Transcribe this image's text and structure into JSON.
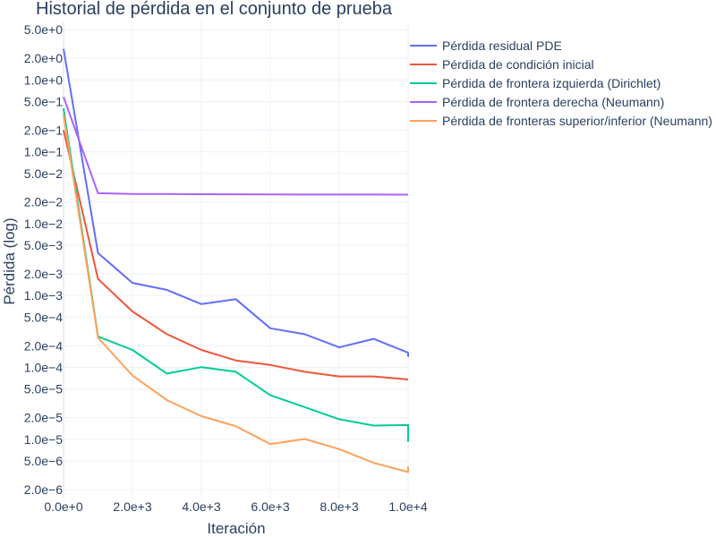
{
  "chart_data": {
    "type": "line",
    "title": "Historial de pérdida en el conjunto de prueba",
    "xlabel": "Iteración",
    "ylabel": "Pérdida (log)",
    "yscale": "log",
    "xlim": [
      0,
      10000
    ],
    "ylim": [
      1.5e-06,
      6.5
    ],
    "x_ticks": [
      {
        "value": 0,
        "label": "0.0e+0"
      },
      {
        "value": 2000,
        "label": "2.0e+3"
      },
      {
        "value": 4000,
        "label": "4.0e+3"
      },
      {
        "value": 6000,
        "label": "6.0e+3"
      },
      {
        "value": 8000,
        "label": "8.0e+3"
      },
      {
        "value": 10000,
        "label": "1.0e+4"
      }
    ],
    "y_ticks": [
      {
        "value": 5,
        "label": "5.0e+0"
      },
      {
        "value": 2,
        "label": "2.0e+0"
      },
      {
        "value": 1,
        "label": "1.0e+0"
      },
      {
        "value": 0.5,
        "label": "5.0e−1"
      },
      {
        "value": 0.2,
        "label": "2.0e−1"
      },
      {
        "value": 0.1,
        "label": "1.0e−1"
      },
      {
        "value": 0.05,
        "label": "5.0e−2"
      },
      {
        "value": 0.02,
        "label": "2.0e−2"
      },
      {
        "value": 0.01,
        "label": "1.0e−2"
      },
      {
        "value": 0.005,
        "label": "5.0e−3"
      },
      {
        "value": 0.002,
        "label": "2.0e−3"
      },
      {
        "value": 0.001,
        "label": "1.0e−3"
      },
      {
        "value": 0.0005,
        "label": "5.0e−4"
      },
      {
        "value": 0.0002,
        "label": "2.0e−4"
      },
      {
        "value": 0.0001,
        "label": "1.0e−4"
      },
      {
        "value": 5e-05,
        "label": "5.0e−5"
      },
      {
        "value": 2e-05,
        "label": "2.0e−5"
      },
      {
        "value": 1e-05,
        "label": "1.0e−5"
      },
      {
        "value": 5e-06,
        "label": "5.0e−6"
      },
      {
        "value": 2e-06,
        "label": "2.0e−6"
      }
    ],
    "grid": true,
    "legend_position": "top-right",
    "series": [
      {
        "name": "Pérdida residual PDE",
        "color": "#636efa",
        "x": [
          0,
          1000,
          2000,
          3000,
          4000,
          5000,
          6000,
          7000,
          8000,
          9000,
          10000,
          10050
        ],
        "y": [
          2.7,
          0.0039,
          0.0015,
          0.0012,
          0.00076,
          0.00089,
          0.00035,
          0.00029,
          0.00019,
          0.00025,
          0.00016,
          0.00014
        ]
      },
      {
        "name": "Pérdida de condición inicial",
        "color": "#ef553b",
        "x": [
          0,
          1000,
          2000,
          3000,
          4000,
          5000,
          6000,
          7000,
          8000,
          9000,
          10000,
          10050
        ],
        "y": [
          0.2,
          0.0017,
          0.0006,
          0.00029,
          0.000175,
          0.000125,
          0.000108,
          8.7e-05,
          7.5e-05,
          7.5e-05,
          6.8e-05,
          6.8e-05
        ]
      },
      {
        "name": "Pérdida de frontera izquierda (Dirichlet)",
        "color": "#00cc96",
        "x": [
          0,
          1000,
          2000,
          3000,
          4000,
          5000,
          6000,
          7000,
          8000,
          9000,
          10000,
          10050
        ],
        "y": [
          0.4,
          0.00027,
          0.000175,
          8.2e-05,
          0.000101,
          8.7e-05,
          4.1e-05,
          2.8e-05,
          1.9e-05,
          1.55e-05,
          1.58e-05,
          9.2e-06
        ]
      },
      {
        "name": "Pérdida de frontera derecha (Neumann)",
        "color": "#ab63fa",
        "x": [
          0,
          1000,
          2000,
          3000,
          4000,
          5000,
          6000,
          7000,
          8000,
          9000,
          10000,
          10050
        ],
        "y": [
          0.58,
          0.0265,
          0.0259,
          0.0258,
          0.0257,
          0.0256,
          0.0255,
          0.0254,
          0.0254,
          0.0254,
          0.0253,
          0.0253
        ]
      },
      {
        "name": "Pérdida de fronteras superior/inferior (Neumann)",
        "color": "#ffa15a",
        "x": [
          0,
          1000,
          2000,
          3000,
          4000,
          5000,
          6000,
          7000,
          8000,
          9000,
          10000,
          10050
        ],
        "y": [
          0.33,
          0.00026,
          7.7e-05,
          3.5e-05,
          2.1e-05,
          1.52e-05,
          8.6e-06,
          1.01e-05,
          7.3e-06,
          4.7e-06,
          3.5e-06,
          4.2e-06
        ]
      }
    ]
  }
}
